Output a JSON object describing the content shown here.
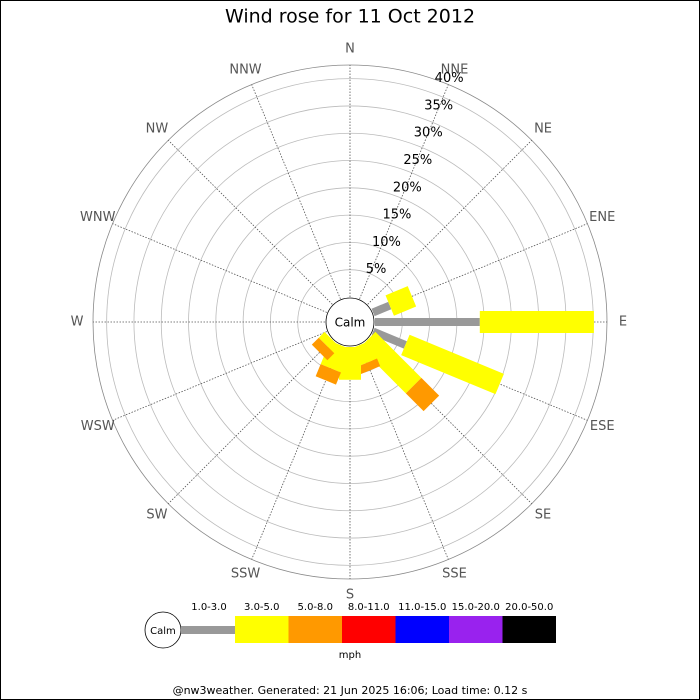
{
  "chart_data": {
    "type": "windrose",
    "title": "Wind rose for 11 Oct 2012",
    "categories": [
      "N",
      "NNE",
      "NE",
      "ENE",
      "E",
      "ESE",
      "SE",
      "SSE",
      "S",
      "SSW",
      "SW",
      "WSW",
      "W",
      "WNW",
      "NW",
      "NNW"
    ],
    "calm_label": "Calm",
    "unit": "mph",
    "rlim": [
      0,
      42.5
    ],
    "rticks": [
      {
        "value": 5,
        "label": "5%"
      },
      {
        "value": 10,
        "label": "10%"
      },
      {
        "value": 15,
        "label": "15%"
      },
      {
        "value": 20,
        "label": "20%"
      },
      {
        "value": 25,
        "label": "25%"
      },
      {
        "value": 30,
        "label": "30%"
      },
      {
        "value": 35,
        "label": "35%"
      },
      {
        "value": 40,
        "label": "40%"
      }
    ],
    "series": [
      {
        "name": "1.0-3.0",
        "color": "#999999",
        "values": [
          0,
          0,
          0,
          3.3,
          19.2,
          6.4,
          0,
          0,
          0,
          0,
          0,
          0,
          0,
          0,
          0,
          0
        ]
      },
      {
        "name": "3.0-5.0",
        "color": "#ffff00",
        "values": [
          0,
          0,
          0,
          4.4,
          20.9,
          18.7,
          11.9,
          3.5,
          6,
          4.6,
          1.5,
          0,
          0,
          0,
          0,
          0
        ]
      },
      {
        "name": "5.0-8.0",
        "color": "#ff9900",
        "values": [
          0,
          0,
          0,
          0,
          0,
          0,
          4.6,
          1.5,
          0,
          2.4,
          1.8,
          0,
          0,
          0,
          0,
          0
        ]
      },
      {
        "name": "8.0-11.0",
        "color": "#ff0000",
        "values": [
          0,
          0,
          0,
          0,
          0,
          0,
          0,
          0,
          0,
          0,
          0,
          0,
          0,
          0,
          0,
          0
        ]
      },
      {
        "name": "11.0-15.0",
        "color": "#0000ff",
        "values": [
          0,
          0,
          0,
          0,
          0,
          0,
          0,
          0,
          0,
          0,
          0,
          0,
          0,
          0,
          0,
          0
        ]
      },
      {
        "name": "15.0-20.0",
        "color": "#9922ee",
        "values": [
          0,
          0,
          0,
          0,
          0,
          0,
          0,
          0,
          0,
          0,
          0,
          0,
          0,
          0,
          0,
          0
        ]
      },
      {
        "name": "20.0-50.0",
        "color": "#000000",
        "values": [
          0,
          0,
          0,
          0,
          0,
          0,
          0,
          0,
          0,
          0,
          0,
          0,
          0,
          0,
          0,
          0
        ]
      }
    ],
    "footer": "@nw3weather. Generated: 21 Jun 2025 16:06; Load time: 0.12 s"
  }
}
